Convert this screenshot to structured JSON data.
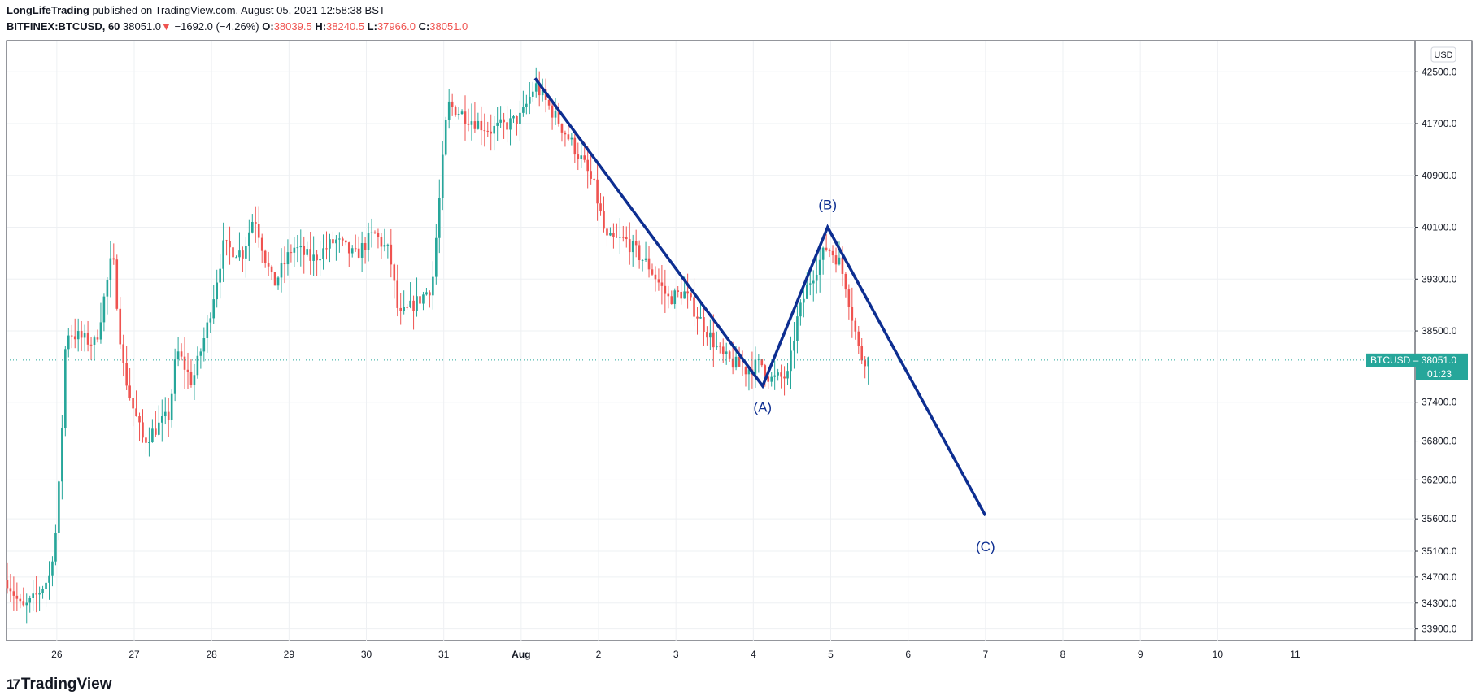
{
  "header": {
    "author": "LongLifeTrading",
    "published_text": " published on TradingView.com, August 05, 2021 12:58:38 BST",
    "symbol": "BITFINEX:BTCUSD, 60",
    "last_price": "38051.0",
    "change": "−1692.0 (−4.26%)",
    "change_arrow": "▼",
    "open_label": "O:",
    "open": "38039.5",
    "high_label": "H:",
    "high": "38240.5",
    "low_label": "L:",
    "low": "37966.0",
    "close_label": "C:",
    "close": "38051.0"
  },
  "footer": {
    "logo_mark": "17",
    "logo_text": "TradingView"
  },
  "colors": {
    "up": "#26a69a",
    "down": "#ef5350",
    "wave": "#0d2e91",
    "grid": "#eef0f3",
    "axis_text": "#131722"
  },
  "chart_data": {
    "type": "candlestick",
    "currency_label": "USD",
    "symbol_tag": "BTCUSD",
    "last_price_tag": "38051.0",
    "countdown": "01:23",
    "y_ticks": [
      {
        "value": 42500,
        "label": "42500.0"
      },
      {
        "value": 41700,
        "label": "41700.0"
      },
      {
        "value": 40900,
        "label": "40900.0"
      },
      {
        "value": 40100,
        "label": "40100.0"
      },
      {
        "value": 39300,
        "label": "39300.0"
      },
      {
        "value": 38500,
        "label": "38500.0"
      },
      {
        "value": 37400,
        "label": "37400.0"
      },
      {
        "value": 36800,
        "label": "36800.0"
      },
      {
        "value": 36200,
        "label": "36200.0"
      },
      {
        "value": 35600,
        "label": "35600.0"
      },
      {
        "value": 35100,
        "label": "35100.0"
      },
      {
        "value": 34700,
        "label": "34700.0"
      },
      {
        "value": 34300,
        "label": "34300.0"
      },
      {
        "value": 33900,
        "label": "33900.0"
      }
    ],
    "x_ticks": [
      {
        "day": 26,
        "label": "26"
      },
      {
        "day": 27,
        "label": "27"
      },
      {
        "day": 28,
        "label": "28"
      },
      {
        "day": 29,
        "label": "29"
      },
      {
        "day": 30,
        "label": "30"
      },
      {
        "day": 31,
        "label": "31"
      },
      {
        "day": 32,
        "label": "Aug",
        "bold": true
      },
      {
        "day": 33,
        "label": "2"
      },
      {
        "day": 34,
        "label": "3"
      },
      {
        "day": 35,
        "label": "4"
      },
      {
        "day": 36,
        "label": "5"
      },
      {
        "day": 37,
        "label": "6"
      },
      {
        "day": 38,
        "label": "7"
      },
      {
        "day": 39,
        "label": "8"
      },
      {
        "day": 40,
        "label": "9"
      },
      {
        "day": 41,
        "label": "10"
      },
      {
        "day": 42,
        "label": "11"
      }
    ],
    "close_path": [
      [
        25.36,
        34650
      ],
      [
        25.55,
        34200
      ],
      [
        25.7,
        34350
      ],
      [
        25.9,
        34700
      ],
      [
        26.0,
        35500
      ],
      [
        26.06,
        36800
      ],
      [
        26.12,
        38500
      ],
      [
        26.3,
        38400
      ],
      [
        26.5,
        38300
      ],
      [
        26.72,
        39700
      ],
      [
        26.85,
        38000
      ],
      [
        26.96,
        37400
      ],
      [
        27.12,
        36800
      ],
      [
        27.45,
        37200
      ],
      [
        27.55,
        38200
      ],
      [
        27.75,
        37700
      ],
      [
        27.95,
        38600
      ],
      [
        28.15,
        39800
      ],
      [
        28.4,
        39700
      ],
      [
        28.55,
        40300
      ],
      [
        28.7,
        39600
      ],
      [
        28.8,
        39200
      ],
      [
        29.05,
        39800
      ],
      [
        29.3,
        39600
      ],
      [
        29.6,
        39900
      ],
      [
        29.85,
        39650
      ],
      [
        30.1,
        40000
      ],
      [
        30.3,
        39700
      ],
      [
        30.42,
        38700
      ],
      [
        30.7,
        39000
      ],
      [
        30.85,
        39200
      ],
      [
        30.97,
        40900
      ],
      [
        31.05,
        42000
      ],
      [
        31.3,
        41800
      ],
      [
        31.6,
        41600
      ],
      [
        31.85,
        41700
      ],
      [
        32.0,
        41800
      ],
      [
        32.18,
        42300
      ],
      [
        32.5,
        41700
      ],
      [
        32.8,
        41100
      ],
      [
        32.95,
        40700
      ],
      [
        33.1,
        39900
      ],
      [
        33.35,
        39900
      ],
      [
        33.65,
        39500
      ],
      [
        33.9,
        39000
      ],
      [
        34.1,
        39100
      ],
      [
        34.4,
        38500
      ],
      [
        34.6,
        38100
      ],
      [
        34.9,
        37900
      ],
      [
        35.1,
        38000
      ],
      [
        35.22,
        37750
      ],
      [
        35.45,
        37800
      ],
      [
        35.55,
        38600
      ],
      [
        35.7,
        39200
      ],
      [
        35.95,
        39800
      ],
      [
        36.1,
        39600
      ],
      [
        36.2,
        39200
      ],
      [
        36.38,
        38100
      ],
      [
        36.5,
        38051
      ]
    ],
    "wick_range": 300,
    "waves": [
      {
        "points": [
          [
            32.18,
            42400
          ],
          [
            35.12,
            37650
          ],
          [
            35.96,
            40100
          ],
          [
            38.0,
            35650
          ]
        ]
      }
    ],
    "wave_labels": [
      {
        "text": "(A)",
        "day": 35.12,
        "price": 37450,
        "anchor": "below"
      },
      {
        "text": "(B)",
        "day": 35.96,
        "price": 40300,
        "anchor": "above"
      },
      {
        "text": "(C)",
        "day": 38.0,
        "price": 35300,
        "anchor": "below"
      }
    ],
    "x_range": [
      25.35,
      43.55
    ],
    "y_range": [
      33720,
      42980
    ],
    "grid": true
  }
}
